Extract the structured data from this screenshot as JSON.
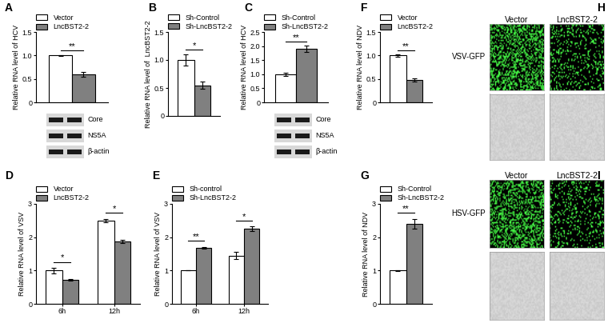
{
  "chart_data": [
    {
      "panel": "A",
      "type": "bar",
      "y_label": "Relative RNA level of HCV",
      "legend": "top",
      "categories": [
        null
      ],
      "series": [
        {
          "name": "Vector",
          "color": "#ffffff",
          "values": [
            1.0
          ],
          "errors": [
            0.01
          ]
        },
        {
          "name": "LncBST2-2",
          "color": "#808080",
          "values": [
            0.6
          ],
          "errors": [
            0.05
          ]
        }
      ],
      "significance": [
        "**"
      ],
      "ylim": [
        0,
        1.5
      ],
      "yticks": [
        0,
        0.5,
        {
          "value": 1,
          "label": "1.0"
        },
        1.5
      ],
      "blot_labels": [
        "Core",
        "NS5A",
        "β-actin"
      ]
    },
    {
      "panel": "B",
      "type": "bar",
      "y_label": "Relative RNA level of  LncBST2-2",
      "legend": "top",
      "categories": [
        null
      ],
      "series": [
        {
          "name": "Sh-Control",
          "color": "#ffffff",
          "values": [
            1.0
          ],
          "errors": [
            0.1
          ]
        },
        {
          "name": "Sh-LncBST2-2",
          "color": "#808080",
          "values": [
            0.55
          ],
          "errors": [
            0.07
          ]
        }
      ],
      "significance": [
        "*"
      ],
      "ylim": [
        0,
        1.5
      ],
      "yticks": [
        0,
        0.5,
        {
          "value": 1,
          "label": "1.0"
        },
        1.5
      ]
    },
    {
      "panel": "C",
      "type": "bar",
      "y_label": "Relative RNA level of HCV",
      "legend": "top",
      "categories": [
        null
      ],
      "series": [
        {
          "name": "Sh-Control",
          "color": "#ffffff",
          "values": [
            1.0
          ],
          "errors": [
            0.05
          ]
        },
        {
          "name": "Sh-LncBST2-2",
          "color": "#808080",
          "values": [
            1.9
          ],
          "errors": [
            0.12
          ]
        }
      ],
      "significance": [
        "**"
      ],
      "ylim": [
        0,
        2.5
      ],
      "yticks": [
        0,
        0.5,
        {
          "value": 1,
          "label": "1.0"
        },
        1.5,
        {
          "value": 2,
          "label": "2.0"
        },
        2.5
      ],
      "blot_labels": [
        "Core",
        "NS5A",
        "β-actin"
      ]
    },
    {
      "panel": "F",
      "type": "bar",
      "y_label": "Relative RNA level of NDV",
      "legend": "top",
      "categories": [
        null
      ],
      "series": [
        {
          "name": "Vector",
          "color": "#ffffff",
          "values": [
            1.0
          ],
          "errors": [
            0.02
          ]
        },
        {
          "name": "LncBST2-2",
          "color": "#808080",
          "values": [
            0.48
          ],
          "errors": [
            0.03
          ]
        }
      ],
      "significance": [
        "**"
      ],
      "ylim": [
        0,
        1.5
      ],
      "yticks": [
        0,
        0.5,
        {
          "value": 1,
          "label": "1.0"
        },
        1.5
      ]
    },
    {
      "panel": "D",
      "type": "bar",
      "y_label": "Relative RNA level of VSV",
      "legend": "top",
      "categories": [
        "6h",
        "12h"
      ],
      "series": [
        {
          "name": "Vector",
          "color": "#ffffff",
          "values": [
            1.0,
            2.5
          ],
          "errors": [
            0.08,
            0.05
          ]
        },
        {
          "name": "LncBST2-2",
          "color": "#808080",
          "values": [
            0.72,
            1.88
          ],
          "errors": [
            0.03,
            0.05
          ]
        }
      ],
      "significance": [
        "*",
        "*"
      ],
      "ylim": [
        0,
        3
      ],
      "yticks": [
        0,
        1,
        2,
        3
      ]
    },
    {
      "panel": "E",
      "type": "bar",
      "y_label": "Relative RNA level of VSV",
      "legend": "top",
      "categories": [
        "6h",
        "12h"
      ],
      "series": [
        {
          "name": "Sh-control",
          "color": "#ffffff",
          "values": [
            1.0,
            1.45
          ],
          "errors": [
            0.0,
            0.1
          ]
        },
        {
          "name": "Sh-LncBST2-2",
          "color": "#808080",
          "values": [
            1.68,
            2.25
          ],
          "errors": [
            0.03,
            0.07
          ]
        }
      ],
      "significance": [
        "**",
        "*"
      ],
      "ylim": [
        0,
        3
      ],
      "yticks": [
        0,
        1,
        2,
        3
      ]
    },
    {
      "panel": "G",
      "type": "bar",
      "y_label": "Relative RNA level of NDV",
      "legend": "top",
      "categories": [
        null
      ],
      "series": [
        {
          "name": "Sh-Control",
          "color": "#ffffff",
          "values": [
            1.0
          ],
          "errors": [
            0.02
          ]
        },
        {
          "name": "Sh-LncBST2-2",
          "color": "#808080",
          "values": [
            2.4
          ],
          "errors": [
            0.15
          ]
        }
      ],
      "significance": [
        "**"
      ],
      "ylim": [
        0,
        3
      ],
      "yticks": [
        0,
        1,
        2,
        3
      ]
    }
  ],
  "images": [
    {
      "panel": "H",
      "columns": [
        "Vector",
        "LncBST2-2"
      ],
      "row_label": "VSV-GFP"
    },
    {
      "panel": "I",
      "columns": [
        "Vector",
        "LncBST2-2"
      ],
      "row_label": "HSV-GFP"
    }
  ]
}
